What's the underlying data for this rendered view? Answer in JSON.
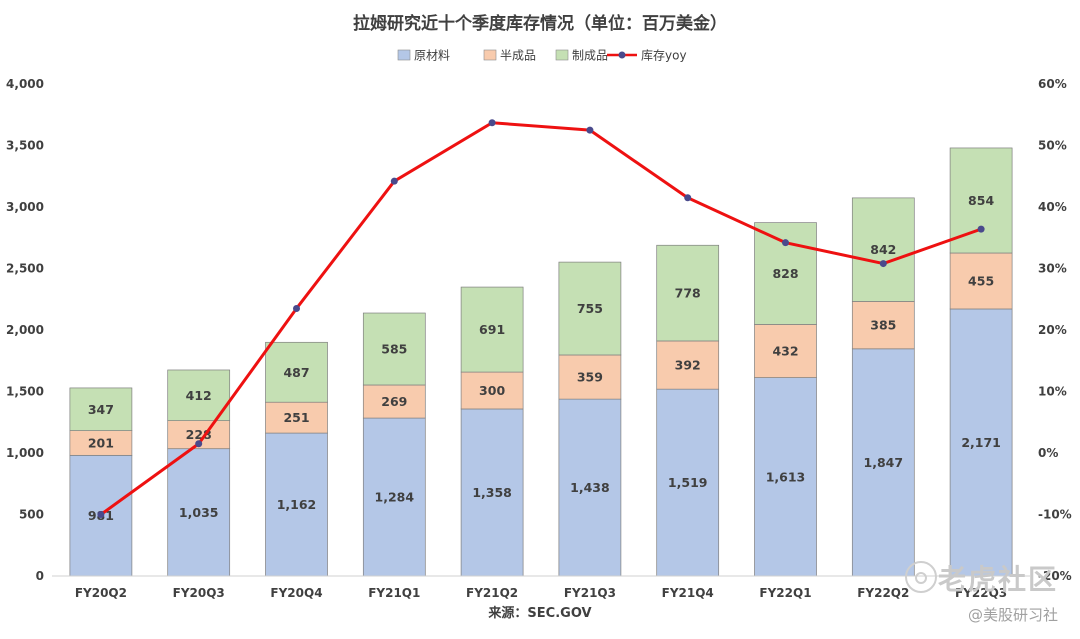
{
  "chart_data": {
    "type": "bar",
    "stacked": true,
    "title": "拉姆研究近十个季度库存情况（单位：百万美金）",
    "caption": "来源：SEC.GOV",
    "categories": [
      "FY20Q2",
      "FY20Q3",
      "FY20Q4",
      "FY21Q1",
      "FY21Q2",
      "FY21Q3",
      "FY21Q4",
      "FY22Q1",
      "FY22Q2",
      "FY22Q3"
    ],
    "series": [
      {
        "name": "原材料",
        "color": "#b4c7e7",
        "values": [
          981,
          1035,
          1162,
          1284,
          1358,
          1438,
          1519,
          1613,
          1847,
          2171
        ],
        "labels": [
          "981",
          "1,035",
          "1,162",
          "1,284",
          "1,358",
          "1,438",
          "1,519",
          "1,613",
          "1,847",
          "2,171"
        ]
      },
      {
        "name": "半成品",
        "color": "#f8cbad",
        "values": [
          201,
          228,
          251,
          269,
          300,
          359,
          392,
          432,
          385,
          455
        ],
        "labels": [
          "201",
          "228",
          "251",
          "269",
          "300",
          "359",
          "392",
          "432",
          "385",
          "455"
        ]
      },
      {
        "name": "制成品",
        "color": "#c5e0b4",
        "values": [
          347,
          412,
          487,
          585,
          691,
          755,
          778,
          828,
          842,
          854
        ],
        "labels": [
          "347",
          "412",
          "487",
          "585",
          "691",
          "755",
          "778",
          "828",
          "842",
          "854"
        ]
      }
    ],
    "line_series": {
      "name": "库存yoy",
      "color": "#ee1111",
      "marker_color": "#4a4a8c",
      "axis": "right",
      "values": [
        -10,
        1.5,
        23.5,
        44.2,
        53.7,
        52.5,
        41.5,
        34.2,
        30.8,
        36.4
      ]
    },
    "y_left": {
      "min": 0,
      "max": 4000,
      "step": 500,
      "tick_labels": [
        "0",
        "500",
        "1,000",
        "1,500",
        "2,000",
        "2,500",
        "3,000",
        "3,500",
        "4,000"
      ]
    },
    "y_right": {
      "min": -20,
      "max": 60,
      "step": 10,
      "tick_labels": [
        "-20%",
        "-10%",
        "0%",
        "10%",
        "20%",
        "30%",
        "40%",
        "50%",
        "60%"
      ]
    },
    "legend_position": "top-center",
    "grid": false
  },
  "watermark": {
    "main": "老虎社区",
    "sub": "@美股研习社"
  }
}
